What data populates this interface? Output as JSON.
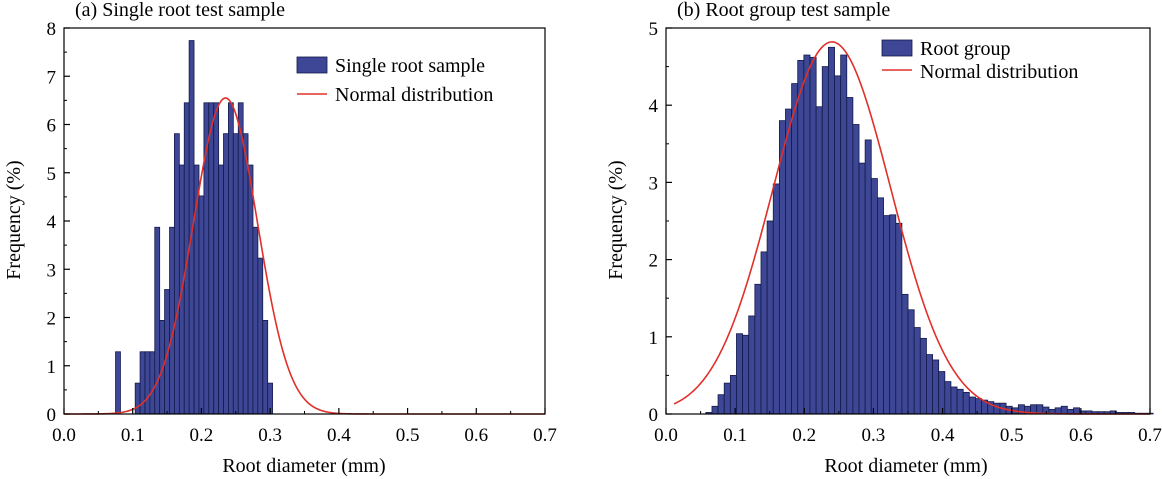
{
  "colors": {
    "bar_fill": "#3d4795",
    "bar_stroke": "#141a4a",
    "curve": "#e0302a",
    "axis": "#000000"
  },
  "chart_data": [
    {
      "type": "bar",
      "title": "(a) Single root test sample",
      "xlabel": "Root diameter (mm)",
      "ylabel": "Frequency (%)",
      "xlim": [
        0.0,
        0.7
      ],
      "ylim": [
        0,
        8
      ],
      "xticks": [
        "0.0",
        "0.1",
        "0.2",
        "0.3",
        "0.4",
        "0.5",
        "0.6",
        "0.7"
      ],
      "yticks": [
        "0",
        "1",
        "2",
        "3",
        "4",
        "5",
        "6",
        "7",
        "8"
      ],
      "legend_position": "top-right",
      "bin_width": 0.00714,
      "series": [
        {
          "name": "Single root sample",
          "kind": "histogram",
          "bin_starts": [
            0.075,
            0.1036,
            0.1107,
            0.1179,
            0.125,
            0.1321,
            0.1393,
            0.1464,
            0.1536,
            0.1607,
            0.1679,
            0.175,
            0.1821,
            0.1893,
            0.1964,
            0.2036,
            0.2107,
            0.2179,
            0.225,
            0.2321,
            0.2393,
            0.2464,
            0.2536,
            0.2607,
            0.2679,
            0.275,
            0.2821,
            0.2893,
            0.2964,
            0.3036,
            0.3107,
            0.3179,
            0.325,
            0.3321
          ],
          "values": [
            1.29,
            0.64,
            1.29,
            1.29,
            1.29,
            3.87,
            1.94,
            2.58,
            3.87,
            5.81,
            5.16,
            6.45,
            7.74,
            5.16,
            4.52,
            6.45,
            6.45,
            6.45,
            5.16,
            5.81,
            6.45,
            5.81,
            6.45,
            5.81,
            5.16,
            3.87,
            3.23,
            1.94,
            0.64,
            0,
            0,
            0,
            0,
            0
          ]
        },
        {
          "name": "Normal distribution",
          "kind": "line",
          "mean": 0.235,
          "sd": 0.0465,
          "peak": 6.55
        }
      ]
    },
    {
      "type": "bar",
      "title": "(b) Root group test sample",
      "xlabel": "Root diameter (mm)",
      "ylabel": "Frequency (%)",
      "xlim": [
        0.0,
        0.7
      ],
      "ylim": [
        0,
        5
      ],
      "xticks": [
        "0.0",
        "0.1",
        "0.2",
        "0.3",
        "0.4",
        "0.5",
        "0.6",
        "0.7"
      ],
      "yticks": [
        "0",
        "1",
        "2",
        "3",
        "4",
        "5"
      ],
      "legend_position": "top-right",
      "bin_width": 0.00886,
      "series": [
        {
          "name": "Root group",
          "kind": "histogram",
          "bin_starts": [
            0.0576,
            0.0665,
            0.0753,
            0.0842,
            0.0931,
            0.1019,
            0.1108,
            0.1196,
            0.1285,
            0.1374,
            0.1462,
            0.1551,
            0.164,
            0.1728,
            0.1817,
            0.1905,
            0.1994,
            0.2083,
            0.2171,
            0.226,
            0.2349,
            0.2437,
            0.2526,
            0.2614,
            0.2703,
            0.2792,
            0.288,
            0.2969,
            0.3058,
            0.3146,
            0.3235,
            0.3323,
            0.3412,
            0.3501,
            0.3589,
            0.3678,
            0.3767,
            0.3855,
            0.3944,
            0.4032,
            0.4121,
            0.421,
            0.4298,
            0.4387,
            0.4476,
            0.4564,
            0.4653,
            0.4741,
            0.483,
            0.4919,
            0.5007,
            0.5096,
            0.5185,
            0.5273,
            0.5362,
            0.545,
            0.5539,
            0.5628,
            0.5716,
            0.5805,
            0.5894,
            0.5982,
            0.6071,
            0.6159,
            0.6248,
            0.6337,
            0.6425,
            0.6514,
            0.6603,
            0.6691,
            0.678,
            0.6868,
            0.6957
          ],
          "values": [
            0.02,
            0.1,
            0.25,
            0.4,
            0.5,
            1.04,
            1.02,
            1.27,
            1.68,
            2.1,
            2.5,
            2.98,
            3.8,
            3.95,
            4.28,
            4.58,
            4.65,
            4.62,
            3.98,
            4.5,
            4.75,
            4.38,
            4.65,
            4.1,
            3.75,
            3.25,
            3.55,
            3.05,
            2.8,
            2.57,
            2.58,
            2.47,
            1.55,
            1.35,
            1.12,
            0.98,
            0.77,
            0.7,
            0.55,
            0.42,
            0.35,
            0.32,
            0.28,
            0.22,
            0.2,
            0.18,
            0.16,
            0.14,
            0.14,
            0.1,
            0.08,
            0.12,
            0.1,
            0.12,
            0.12,
            0.09,
            0.06,
            0.08,
            0.1,
            0.06,
            0.08,
            0.04,
            0.04,
            0.03,
            0.03,
            0.03,
            0.04,
            0.02,
            0.02,
            0.02,
            0.01,
            0.01,
            0.01
          ]
        },
        {
          "name": "Normal distribution",
          "kind": "line",
          "mean": 0.24,
          "sd": 0.085,
          "peak": 4.82
        }
      ]
    }
  ]
}
